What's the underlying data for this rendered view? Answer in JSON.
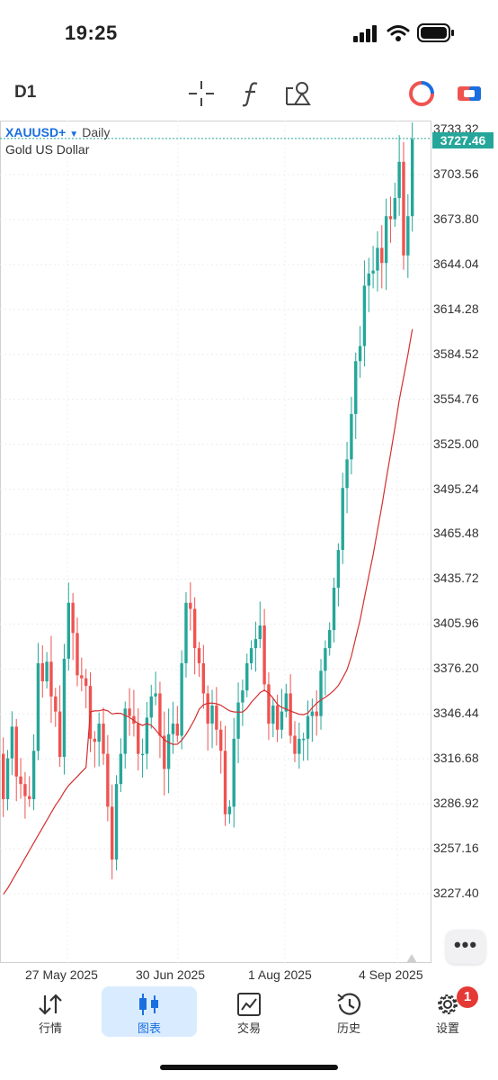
{
  "status_bar": {
    "time": "19:25"
  },
  "toolbar": {
    "timeframe": "D1",
    "icons": [
      "crosshair-icon",
      "function-icon",
      "objects-icon",
      "chart-type-icon",
      "trade-mode-icon"
    ]
  },
  "chart": {
    "symbol": "XAUUSD+",
    "timeframe_label": "Daily",
    "description": "Gold US Dollar",
    "current_price": "3727.46"
  },
  "chart_data": {
    "type": "candlestick",
    "price_labels": [
      "3733.32",
      "3703.56",
      "3673.80",
      "3644.04",
      "3614.28",
      "3584.52",
      "3554.76",
      "3525.00",
      "3495.24",
      "3465.48",
      "3435.72",
      "3405.96",
      "3376.20",
      "3346.44",
      "3316.68",
      "3286.92",
      "3257.16",
      "3227.40"
    ],
    "date_labels": [
      "27 May 2025",
      "30 Jun 2025",
      "1 Aug 2025",
      "4 Sep 2025"
    ],
    "colors": {
      "up": "#26a69a",
      "down": "#ef5350",
      "ma": "#d32f2f"
    },
    "closes": [
      3290,
      3317,
      3338,
      3305,
      3300,
      3292,
      3290,
      3322,
      3380,
      3368,
      3381,
      3358,
      3348,
      3318,
      3383,
      3420,
      3400,
      3372,
      3370,
      3365,
      3330,
      3328,
      3340,
      3320,
      3285,
      3250,
      3300,
      3320,
      3350,
      3345,
      3340,
      3320,
      3320,
      3344,
      3358,
      3360,
      3332,
      3310,
      3333,
      3340,
      3332,
      3380,
      3420,
      3416,
      3390,
      3380,
      3360,
      3340,
      3352,
      3336,
      3322,
      3280,
      3285,
      3330,
      3354,
      3362,
      3380,
      3390,
      3396,
      3405,
      3366,
      3340,
      3352,
      3336,
      3348,
      3360,
      3332,
      3320,
      3330,
      3330,
      3345,
      3348,
      3345,
      3375,
      3390,
      3402,
      3430,
      3455,
      3496,
      3515,
      3545,
      3580,
      3590,
      3630,
      3638,
      3640,
      3655,
      3645,
      3676,
      3674,
      3688,
      3712,
      3650,
      3676,
      3727
    ],
    "ma_start": [
      3227,
      3231,
      3236,
      3241,
      3246,
      3251,
      3256,
      3261,
      3266,
      3271,
      3276,
      3281,
      3286,
      3290,
      3295,
      3299,
      3302,
      3305,
      3308,
      3311
    ]
  },
  "bottom_nav": [
    {
      "label": "行情",
      "icon": "quotes-icon"
    },
    {
      "label": "图表",
      "icon": "chart-icon",
      "active": true
    },
    {
      "label": "交易",
      "icon": "trade-icon"
    },
    {
      "label": "历史",
      "icon": "history-icon"
    },
    {
      "label": "设置",
      "icon": "settings-icon",
      "badge": "1"
    }
  ]
}
